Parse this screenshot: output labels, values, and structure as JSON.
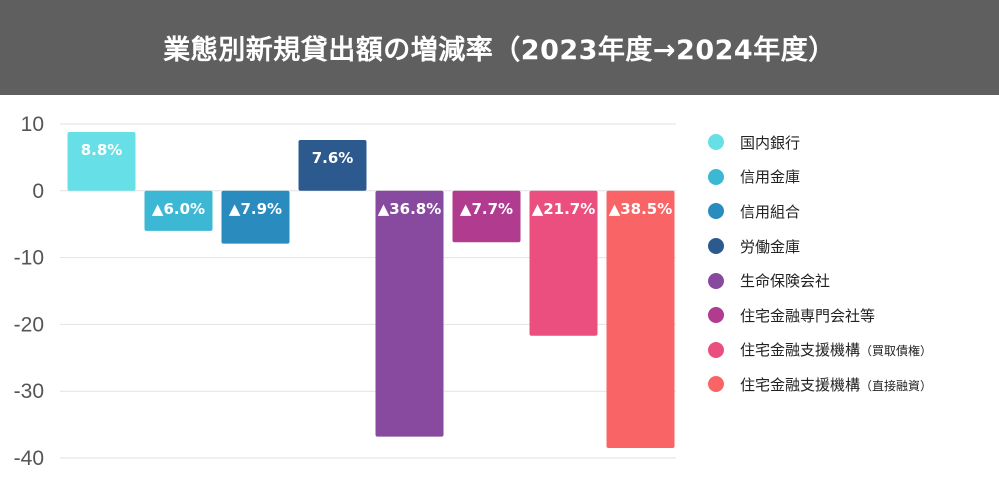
{
  "header": {
    "title": "業態別新規貸出額の増減率（2023年度→2024年度）"
  },
  "chart_data": {
    "type": "bar",
    "title": "業態別新規貸出額の増減率（2023年度→2024年度）",
    "xlabel": "",
    "ylabel": "",
    "ylim": [
      -40,
      10
    ],
    "yticks": [
      10,
      0,
      -10,
      -20,
      -30,
      -40
    ],
    "grid": true,
    "legend_position": "right",
    "categories": [
      "国内銀行",
      "信用金庫",
      "信用組合",
      "労働金庫",
      "生命保険会社",
      "住宅金融専門会社等",
      "住宅金融支援機構（買取債権）",
      "住宅金融支援機構（直接融資）"
    ],
    "values": [
      8.8,
      -6.0,
      -7.9,
      7.6,
      -36.8,
      -7.7,
      -21.7,
      -38.5
    ],
    "data_labels": [
      "8.8%",
      "▲6.0%",
      "▲7.9%",
      "7.6%",
      "▲36.8%",
      "▲7.7%",
      "▲21.7%",
      "▲38.5%"
    ],
    "colors": [
      "#66e0e6",
      "#3db8d4",
      "#2a8bbf",
      "#2c5a8f",
      "#874a9e",
      "#b03b8f",
      "#ea4f80",
      "#f96467"
    ]
  },
  "legend": {
    "items": [
      {
        "label": "国内銀行",
        "sub": ""
      },
      {
        "label": "信用金庫",
        "sub": ""
      },
      {
        "label": "信用組合",
        "sub": ""
      },
      {
        "label": "労働金庫",
        "sub": ""
      },
      {
        "label": "生命保険会社",
        "sub": ""
      },
      {
        "label": "住宅金融専門会社等",
        "sub": ""
      },
      {
        "label": "住宅金融支援機構",
        "sub": "（買取債権）"
      },
      {
        "label": "住宅金融支援機構",
        "sub": "（直接融資）"
      }
    ]
  }
}
